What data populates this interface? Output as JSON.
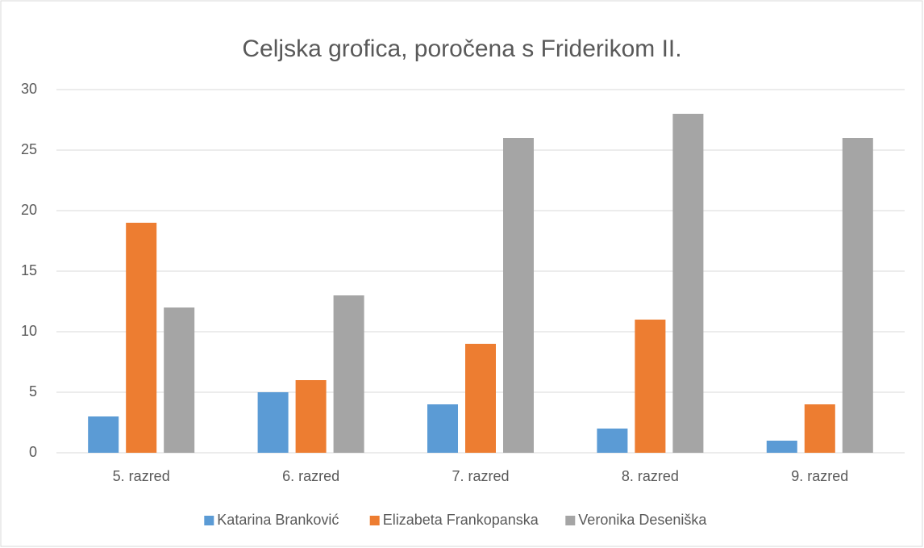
{
  "chart_data": {
    "type": "bar",
    "title": "Celjska grofica, poročena s Friderikom II.",
    "categories": [
      "5. razred",
      "6. razred",
      "7. razred",
      "8. razred",
      "9. razred"
    ],
    "series": [
      {
        "name": "Katarina Branković",
        "color": "#5b9bd5",
        "values": [
          3,
          5,
          4,
          2,
          1
        ]
      },
      {
        "name": "Elizabeta Frankopanska",
        "color": "#ed7d31",
        "values": [
          19,
          6,
          9,
          11,
          4
        ]
      },
      {
        "name": "Veronika Deseniška",
        "color": "#a5a5a5",
        "values": [
          12,
          13,
          26,
          28,
          26
        ]
      }
    ],
    "ylim": [
      0,
      30
    ],
    "yticks": [
      0,
      5,
      10,
      15,
      20,
      25,
      30
    ],
    "grid": true,
    "legend": "bottom"
  }
}
